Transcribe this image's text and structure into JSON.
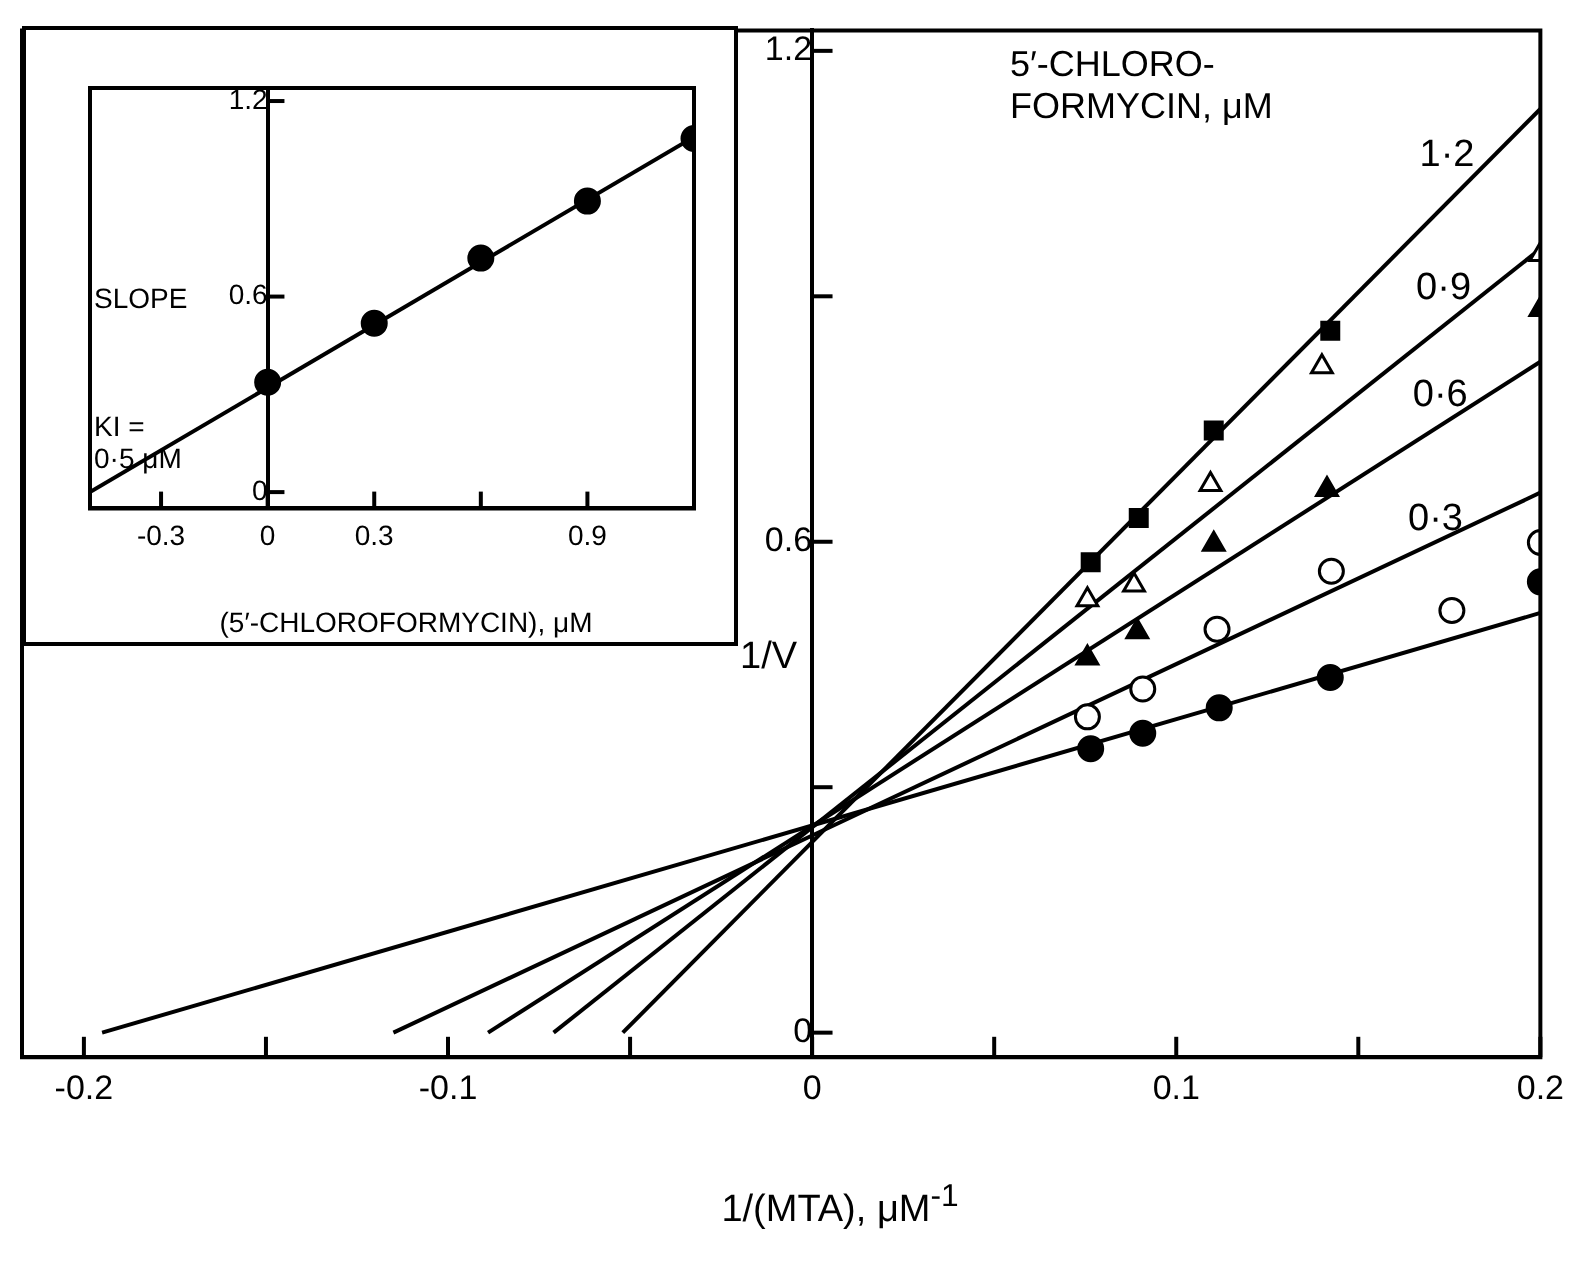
{
  "chart_data": [
    {
      "type": "scatter",
      "xlabel": "1/(MTA), μM$^{-1}$",
      "ylabel": "1/V",
      "legend_title": "5′-CHLORO-\nFORMYCIN, μM",
      "xlim": [
        -0.217,
        0.2
      ],
      "ylim": [
        -0.03,
        1.225
      ],
      "xticks": [
        -0.2,
        {
          "value": -0.15,
          "label": null
        },
        -0.1,
        {
          "value": -0.05,
          "label": null
        },
        0,
        {
          "value": 0.05,
          "label": null
        },
        0.1,
        {
          "value": 0.15,
          "label": null
        },
        0.2
      ],
      "yticks": [
        0,
        {
          "value": 0.3,
          "label": null
        },
        0.6,
        {
          "value": 0.9,
          "label": null
        },
        1.2
      ],
      "series": [
        {
          "type": "scatter",
          "marker": "circle",
          "color": "#000000",
          "x": [
            0.0765,
            0.0908,
            0.1118,
            0.1423,
            0.2
          ],
          "values": [
            0.347,
            0.366,
            0.397,
            0.434,
            0.551
          ]
        },
        {
          "type": "scatter",
          "marker": "circle",
          "color": "#ffffff",
          "x": [
            0.0756,
            0.0908,
            0.1112,
            0.1426,
            0.1757,
            0.2
          ],
          "values": [
            0.386,
            0.42,
            0.493,
            0.564,
            0.516,
            0.599
          ]
        },
        {
          "type": "scatter",
          "marker": "triangle",
          "color": "#000000",
          "x": [
            0.0756,
            0.0893,
            0.1103,
            0.1414,
            0.2
          ],
          "values": [
            0.458,
            0.49,
            0.597,
            0.664,
            0.884
          ]
        },
        {
          "type": "scatter",
          "marker": "triangle",
          "color": "#ffffff",
          "x": [
            0.0756,
            0.0884,
            0.1094,
            0.14,
            0.2
          ],
          "values": [
            0.529,
            0.547,
            0.67,
            0.814,
            0.951
          ]
        },
        {
          "type": "scatter",
          "marker": "square",
          "color": "#000000",
          "x": [
            0.0765,
            0.0897,
            0.1103,
            0.1423
          ],
          "values": [
            0.575,
            0.629,
            0.736,
            0.858
          ]
        },
        {
          "type": "line",
          "color": "#000000",
          "x": [
            -0.195,
            0.2
          ],
          "values": [
            0,
            0.513
          ]
        },
        {
          "type": "line",
          "name": "0·3",
          "color": "#000000",
          "x": [
            -0.115,
            0.2
          ],
          "values": [
            0,
            0.66
          ]
        },
        {
          "type": "line",
          "name": "0·6",
          "color": "#000000",
          "x": [
            -0.089,
            0.2
          ],
          "values": [
            0,
            0.82
          ]
        },
        {
          "type": "line",
          "name": "0·9",
          "color": "#000000",
          "x": [
            -0.071,
            0.2
          ],
          "values": [
            0,
            0.958
          ]
        },
        {
          "type": "line",
          "name": "1·2",
          "color": "#000000",
          "x": [
            -0.052,
            0.2
          ],
          "values": [
            0,
            1.129
          ]
        }
      ]
    },
    {
      "type": "scatter",
      "xlabel": "(5′-CHLOROFORMYCIN), μM",
      "ylabel": "SLOPE",
      "annotations": [
        "KI =\n0·5 μM"
      ],
      "xlim": [
        -0.5,
        1.2
      ],
      "ylim": [
        -0.05,
        1.24
      ],
      "xticks": [
        -0.3,
        0,
        0.3,
        {
          "value": 0.6,
          "label": null
        },
        0.9
      ],
      "yticks": [
        0,
        0.6,
        1.2
      ],
      "series": [
        {
          "type": "scatter",
          "marker": "circle",
          "color": "#000000",
          "x": [
            0,
            0.3,
            0.6,
            0.9,
            1.2
          ],
          "values": [
            0.337,
            0.518,
            0.718,
            0.893,
            1.085
          ]
        },
        {
          "type": "line",
          "color": "#000000",
          "x": [
            -0.5,
            1.2
          ],
          "values": [
            0,
            1.09
          ]
        }
      ]
    }
  ]
}
